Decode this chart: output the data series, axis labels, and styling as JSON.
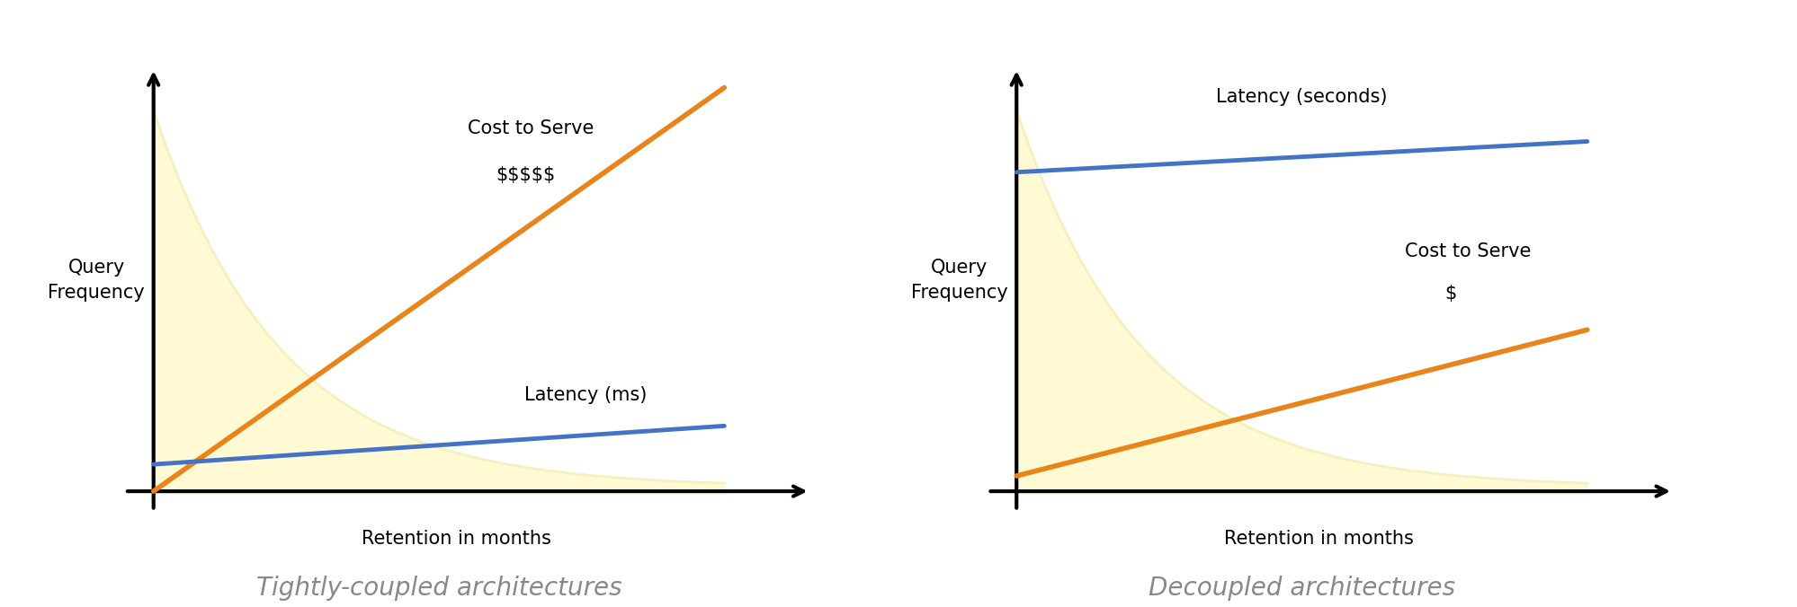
{
  "background_color": "#ffffff",
  "left_chart": {
    "title": "Tightly-coupled architectures",
    "xlabel": "Retention in months",
    "ylabel": "Query\nFrequency",
    "cost_label_line1": "Cost to Serve",
    "cost_label_line2": "$$$$$",
    "latency_label": "Latency (ms)",
    "cost_color": "#E8841A",
    "latency_color": "#4472C4",
    "freq_color": "#FFFACD",
    "freq_edge_color": "#F5F0C0"
  },
  "right_chart": {
    "title": "Decoupled architectures",
    "xlabel": "Retention in months",
    "ylabel": "Query\nFrequency",
    "cost_label_line1": "Cost to Serve",
    "cost_label_line2": "$",
    "latency_label": "Latency (seconds)",
    "cost_color": "#E8841A",
    "latency_color": "#4472C4",
    "freq_color": "#FFFACD",
    "freq_edge_color": "#F5F0C0"
  },
  "annotation_fontsize": 15,
  "axis_label_fontsize": 15,
  "subtitle_fontsize": 20,
  "ylabel_fontsize": 15,
  "line_width": 3.5,
  "axis_lw": 3.0
}
